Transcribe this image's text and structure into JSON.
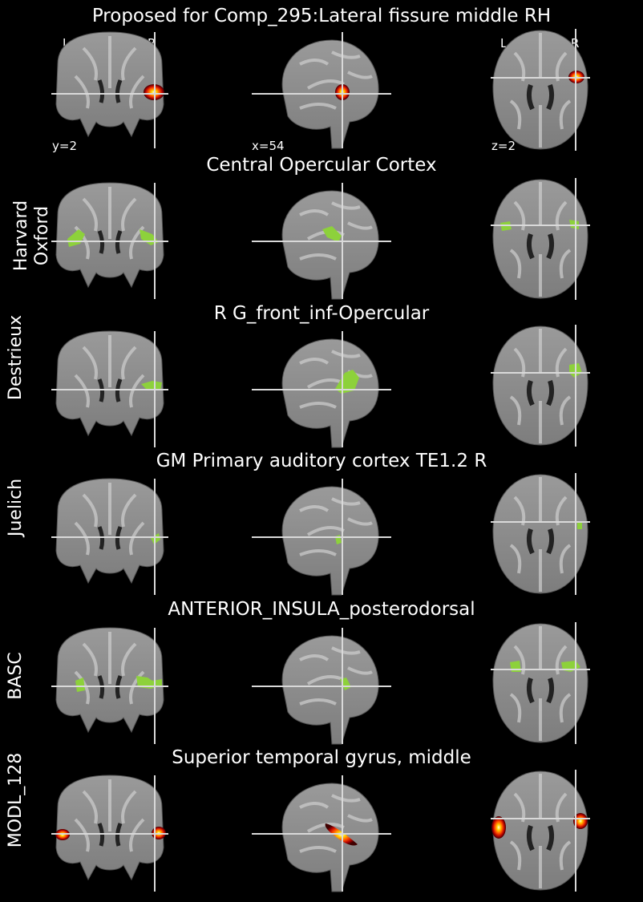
{
  "figure": {
    "background": "#000000",
    "crosshair_color": "#d9d9d9",
    "atlas_color": "#8dd13b",
    "component_colormap": [
      "#3a0000",
      "#b50000",
      "#ff3c00",
      "#ffb000",
      "#ffffd0"
    ]
  },
  "orientation": {
    "left": "L",
    "right": "R"
  },
  "coordinates": {
    "coronal": "y=2",
    "sagittal": "x=54",
    "axial": "z=2"
  },
  "rows": [
    {
      "title": "Proposed for Comp_295:Lateral fissure middle RH",
      "row_label": "",
      "overlay": "component",
      "slices": [
        "coronal",
        "sagittal",
        "axial"
      ]
    },
    {
      "title": "Central Opercular Cortex",
      "row_label": "Harvard Oxford",
      "overlay": "atlas",
      "slices": [
        "coronal",
        "sagittal",
        "axial"
      ]
    },
    {
      "title": "R G_front_inf-Opercular",
      "row_label": "Destrieux",
      "overlay": "atlas",
      "slices": [
        "coronal",
        "sagittal",
        "axial"
      ]
    },
    {
      "title": "GM Primary auditory cortex TE1.2 R",
      "row_label": "Juelich",
      "overlay": "atlas",
      "slices": [
        "coronal",
        "sagittal",
        "axial"
      ]
    },
    {
      "title": "ANTERIOR_INSULA_posterodorsal",
      "row_label": "BASC",
      "overlay": "atlas",
      "slices": [
        "coronal",
        "sagittal",
        "axial"
      ]
    },
    {
      "title": "Superior temporal gyrus, middle",
      "row_label": "MODL_128",
      "overlay": "component",
      "slices": [
        "coronal",
        "sagittal",
        "axial"
      ]
    }
  ]
}
